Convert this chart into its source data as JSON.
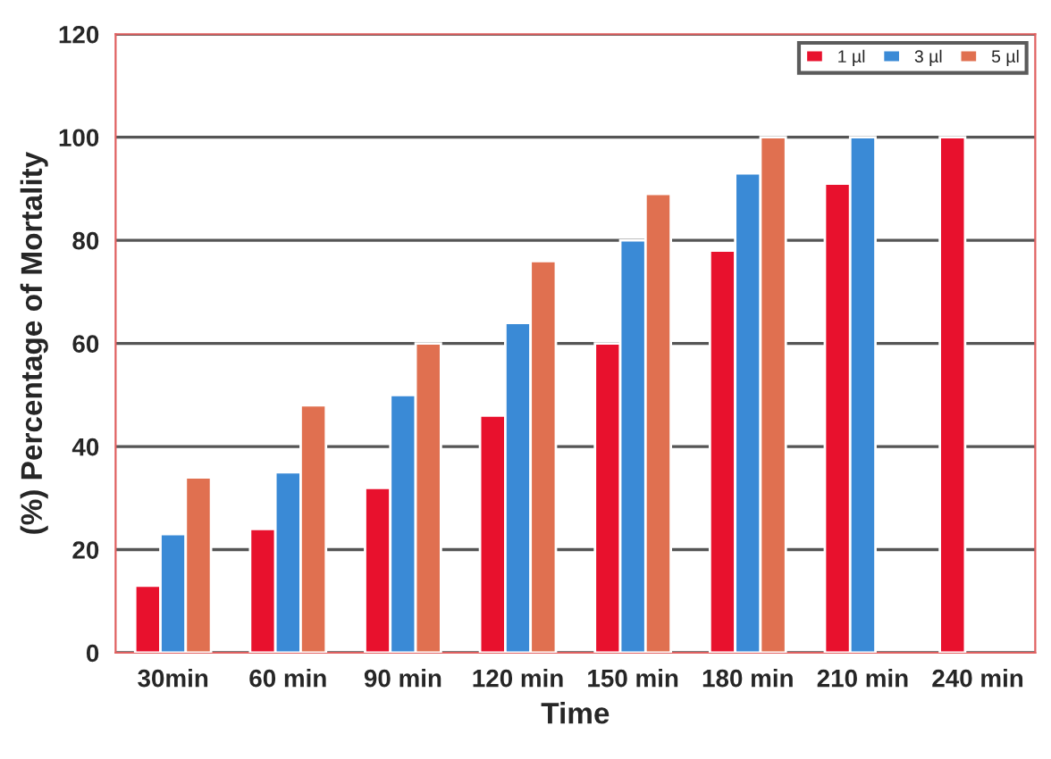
{
  "chart_data": {
    "type": "bar",
    "xlabel": "Time",
    "ylabel": "(%) Percentage of Mortality",
    "categories": [
      "30min",
      "60 min",
      "90 min",
      "120 min",
      "150 min",
      "180 min",
      "210 min",
      "240 min"
    ],
    "series": [
      {
        "name": "1 µl",
        "color": "#e8112d",
        "values": [
          13,
          24,
          32,
          46,
          60,
          78,
          91,
          100
        ]
      },
      {
        "name": "3 µl",
        "color": "#3a8ad6",
        "values": [
          23,
          35,
          50,
          64,
          80,
          93,
          100,
          null
        ]
      },
      {
        "name": "5 µl",
        "color": "#e07050",
        "values": [
          34,
          48,
          60,
          76,
          89,
          100,
          null,
          null
        ]
      }
    ],
    "ylim": [
      0,
      120
    ],
    "yticks": [
      0,
      20,
      40,
      60,
      80,
      100,
      120
    ],
    "grid": "y",
    "legend": "top right"
  }
}
